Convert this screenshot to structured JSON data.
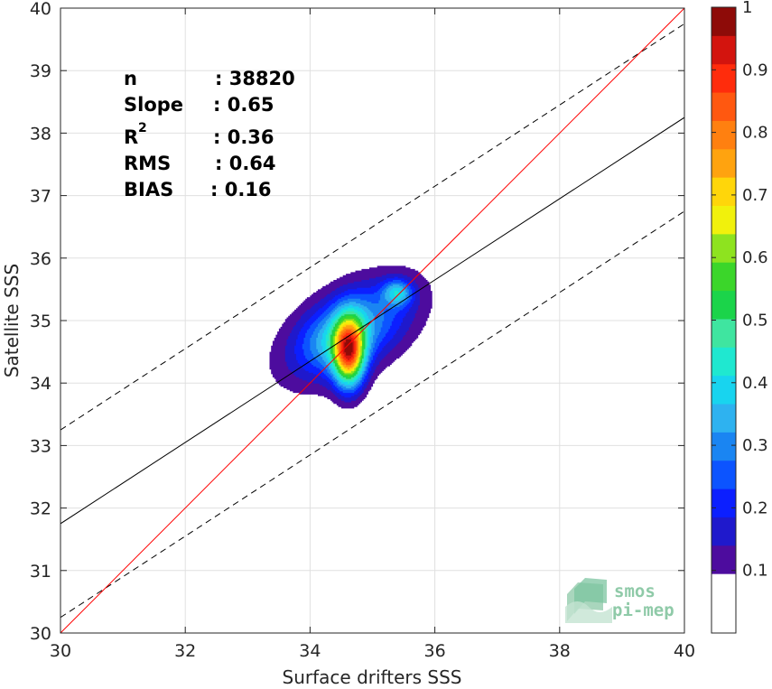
{
  "chart_data": {
    "type": "density-scatter",
    "xlabel": "Surface drifters SSS",
    "ylabel": "Satellite SSS",
    "xlim": [
      30,
      40
    ],
    "ylim": [
      30,
      40
    ],
    "xticks": [
      "30",
      "32",
      "34",
      "36",
      "38",
      "40"
    ],
    "yticks": [
      "30",
      "31",
      "32",
      "33",
      "34",
      "35",
      "36",
      "37",
      "38",
      "39",
      "40"
    ],
    "grid": true,
    "stats": [
      {
        "key": "n",
        "value": ": 38820"
      },
      {
        "key": "Slope",
        "value": ": 0.65"
      },
      {
        "key": "R",
        "sup": "2",
        "value": ": 0.36"
      },
      {
        "key": "RMS",
        "value": ": 0.64"
      },
      {
        "key": "BIAS",
        "value": ": 0.16"
      }
    ],
    "lines": {
      "identity": {
        "slope": 1.0,
        "intercept": 0.0,
        "color": "#ff0000"
      },
      "fit": {
        "slope": 0.65,
        "intercept": 12.25,
        "color": "#000000"
      },
      "fit_upper": {
        "slope": 0.65,
        "intercept": 13.75,
        "dashed": true
      },
      "fit_lower": {
        "slope": 0.65,
        "intercept": 10.75,
        "dashed": true
      }
    },
    "density_peaks": [
      {
        "x": 34.62,
        "y": 34.5,
        "amp": 1.0
      },
      {
        "x": 35.4,
        "y": 35.45,
        "amp": 0.72
      },
      {
        "x": 34.25,
        "y": 34.65,
        "amp": 0.5
      }
    ],
    "colorbar": {
      "ticks": [
        "0.1",
        "0.2",
        "0.3",
        "0.4",
        "0.5",
        "0.6",
        "0.7",
        "0.8",
        "0.9",
        "1"
      ],
      "colors": [
        "#4d0c9e",
        "#1f19cc",
        "#0c1fff",
        "#0c54ff",
        "#1a85f2",
        "#2eb2f0",
        "#18d4ef",
        "#1fe8d0",
        "#3fe5a0",
        "#1bd44a",
        "#3bd62a",
        "#8ee31f",
        "#f1f10c",
        "#ffd60a",
        "#ffa30f",
        "#ff8010",
        "#ff5810",
        "#ff2c0c",
        "#d3140e",
        "#8e0b08"
      ]
    }
  },
  "logo": {
    "line1": "smos",
    "line2": "pi-mep"
  }
}
